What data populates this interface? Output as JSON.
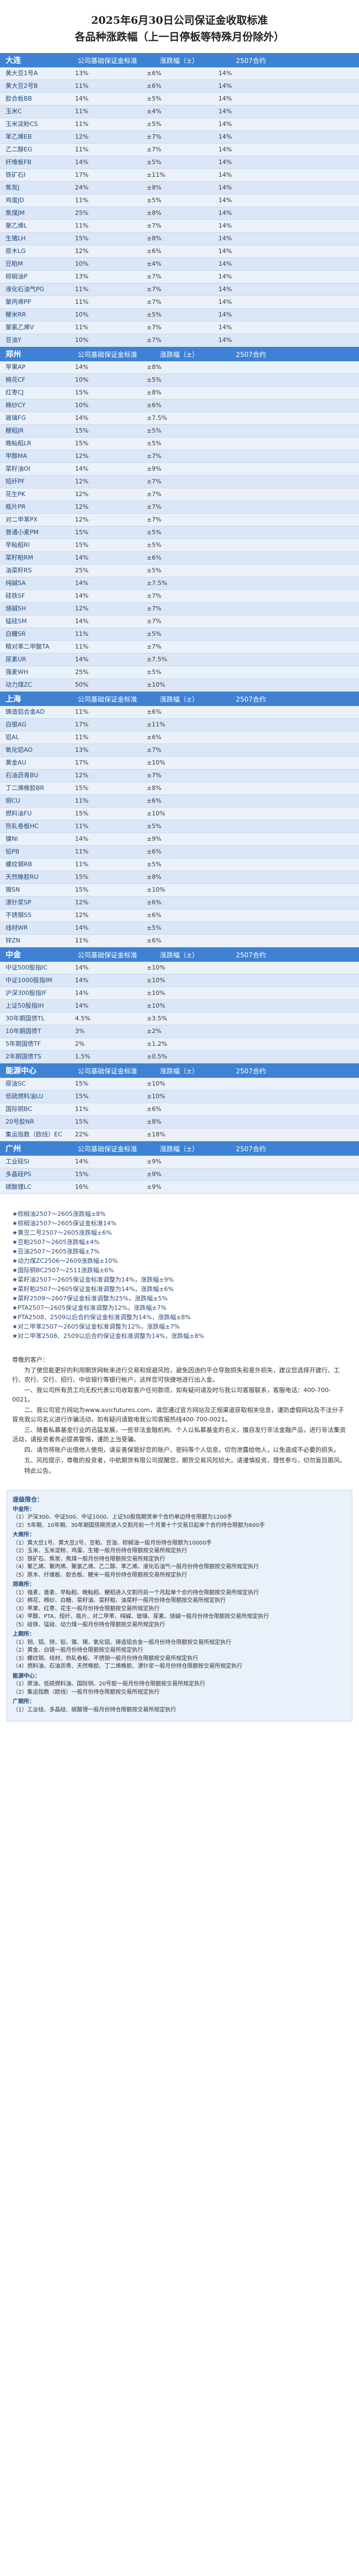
{
  "title": {
    "line1": "2025年6月30日公司保证金收取标准",
    "line2": "各品种涨跌幅（上一日停板等特殊月份除外）"
  },
  "columns": [
    "公司基础保证金标准",
    "涨跌幅（±）",
    "2507合约"
  ],
  "sections": [
    {
      "name": "大连",
      "rows": [
        [
          "黄大豆1号A",
          "13%",
          "±6%",
          "14%",
          ""
        ],
        [
          "黄大豆2号B",
          "11%",
          "±6%",
          "14%",
          ""
        ],
        [
          "胶合板BB",
          "14%",
          "±5%",
          "14%",
          ""
        ],
        [
          "玉米C",
          "11%",
          "±4%",
          "14%",
          ""
        ],
        [
          "玉米淀粉CS",
          "11%",
          "±5%",
          "14%",
          ""
        ],
        [
          "苯乙烯EB",
          "12%",
          "±7%",
          "14%",
          ""
        ],
        [
          "乙二醇EG",
          "11%",
          "±7%",
          "14%",
          ""
        ],
        [
          "纤维板FB",
          "14%",
          "±5%",
          "14%",
          ""
        ],
        [
          "铁矿石I",
          "17%",
          "±11%",
          "14%",
          ""
        ],
        [
          "焦炭J",
          "24%",
          "±8%",
          "14%",
          ""
        ],
        [
          "鸡蛋JD",
          "11%",
          "±5%",
          "14%",
          ""
        ],
        [
          "焦煤JM",
          "25%",
          "±8%",
          "14%",
          ""
        ],
        [
          "聚乙烯L",
          "11%",
          "±7%",
          "14%",
          ""
        ],
        [
          "生猪LH",
          "15%",
          "±8%",
          "14%",
          ""
        ],
        [
          "原木LG",
          "12%",
          "±6%",
          "14%",
          ""
        ],
        [
          "豆粕M",
          "10%",
          "±4%",
          "14%",
          ""
        ],
        [
          "棕榈油P",
          "13%",
          "±7%",
          "14%",
          ""
        ],
        [
          "液化石油气PG",
          "11%",
          "±7%",
          "14%",
          ""
        ],
        [
          "聚丙烯PP",
          "11%",
          "±7%",
          "14%",
          ""
        ],
        [
          "粳米RR",
          "10%",
          "±5%",
          "14%",
          ""
        ],
        [
          "聚氯乙烯V",
          "11%",
          "±7%",
          "14%",
          ""
        ],
        [
          "豆油Y",
          "10%",
          "±7%",
          "14%",
          ""
        ]
      ]
    },
    {
      "name": "郑州",
      "rows": [
        [
          "苹果AP",
          "14%",
          "±8%",
          "",
          ""
        ],
        [
          "棉花CF",
          "10%",
          "±5%",
          "",
          ""
        ],
        [
          "红枣CJ",
          "15%",
          "±8%",
          "",
          ""
        ],
        [
          "棉纱CY",
          "10%",
          "±6%",
          "",
          ""
        ],
        [
          "玻璃FG",
          "14%",
          "±7.5%",
          "",
          ""
        ],
        [
          "粳稻JR",
          "15%",
          "±5%",
          "",
          ""
        ],
        [
          "晚籼稻LR",
          "15%",
          "±5%",
          "",
          ""
        ],
        [
          "甲醇MA",
          "12%",
          "±7%",
          "",
          ""
        ],
        [
          "菜籽油OI",
          "14%",
          "±9%",
          "",
          ""
        ],
        [
          "短纤PF",
          "12%",
          "±7%",
          "",
          ""
        ],
        [
          "花生PK",
          "12%",
          "±7%",
          "",
          ""
        ],
        [
          "瓶片PR",
          "12%",
          "±7%",
          "",
          ""
        ],
        [
          "对二甲苯PX",
          "12%",
          "±7%",
          "",
          ""
        ],
        [
          "普通小麦PM",
          "15%",
          "±5%",
          "",
          ""
        ],
        [
          "早籼稻RI",
          "15%",
          "±5%",
          "",
          ""
        ],
        [
          "菜籽粕RM",
          "14%",
          "±6%",
          "",
          ""
        ],
        [
          "油菜籽RS",
          "25%",
          "±5%",
          "",
          ""
        ],
        [
          "纯碱SA",
          "14%",
          "±7.5%",
          "",
          ""
        ],
        [
          "硅铁SF",
          "14%",
          "±7%",
          "",
          ""
        ],
        [
          "烧碱SH",
          "12%",
          "±7%",
          "",
          ""
        ],
        [
          "锰硅SM",
          "14%",
          "±7%",
          "",
          ""
        ],
        [
          "白糖SR",
          "11%",
          "±5%",
          "",
          ""
        ],
        [
          "精对苯二甲酸TA",
          "11%",
          "±7%",
          "",
          ""
        ],
        [
          "尿素UR",
          "14%",
          "±7.5%",
          "",
          ""
        ],
        [
          "强麦WH",
          "25%",
          "±5%",
          "",
          ""
        ],
        [
          "动力煤ZC",
          "50%",
          "±10%",
          "",
          ""
        ]
      ]
    },
    {
      "name": "上海",
      "rows": [
        [
          "铸造铝合金AD",
          "11%",
          "±6%",
          "",
          ""
        ],
        [
          "白银AG",
          "17%",
          "±11%",
          "",
          ""
        ],
        [
          "铝AL",
          "11%",
          "±6%",
          "",
          ""
        ],
        [
          "氧化铝AO",
          "13%",
          "±7%",
          "",
          ""
        ],
        [
          "黄金AU",
          "17%",
          "±10%",
          "",
          ""
        ],
        [
          "石油沥青BU",
          "12%",
          "±7%",
          "",
          ""
        ],
        [
          "丁二烯橡胶BR",
          "15%",
          "±8%",
          "",
          ""
        ],
        [
          "铜CU",
          "11%",
          "±6%",
          "",
          ""
        ],
        [
          "燃料油FU",
          "15%",
          "±10%",
          "",
          ""
        ],
        [
          "热轧卷板HC",
          "11%",
          "±5%",
          "",
          ""
        ],
        [
          "镍NI",
          "14%",
          "±9%",
          "",
          ""
        ],
        [
          "铅PB",
          "11%",
          "±6%",
          "",
          ""
        ],
        [
          "螺纹钢RB",
          "11%",
          "±5%",
          "",
          ""
        ],
        [
          "天然橡胶RU",
          "15%",
          "±8%",
          "",
          ""
        ],
        [
          "锡SN",
          "15%",
          "±10%",
          "",
          ""
        ],
        [
          "漂针浆SP",
          "12%",
          "±6%",
          "",
          ""
        ],
        [
          "不锈钢SS",
          "12%",
          "±6%",
          "",
          ""
        ],
        [
          "线材WR",
          "14%",
          "±5%",
          "",
          ""
        ],
        [
          "锌ZN",
          "11%",
          "±6%",
          "",
          ""
        ]
      ]
    },
    {
      "name": "中金",
      "rows": [
        [
          "中证500股指IC",
          "14%",
          "±10%",
          "",
          ""
        ],
        [
          "中证1000股指IM",
          "14%",
          "±10%",
          "",
          ""
        ],
        [
          "沪深300股指IF",
          "14%",
          "±10%",
          "",
          ""
        ],
        [
          "上证50股指IH",
          "14%",
          "±10%",
          "",
          ""
        ],
        [
          "30年期国债TL",
          "4.5%",
          "±3.5%",
          "",
          ""
        ],
        [
          "10年期国债T",
          "3%",
          "±2%",
          "",
          ""
        ],
        [
          "5年期国债TF",
          "2%",
          "±1.2%",
          "",
          ""
        ],
        [
          "2年期国债TS",
          "1.5%",
          "±0.5%",
          "",
          ""
        ]
      ]
    },
    {
      "name": "能源中心",
      "rows": [
        [
          "原油SC",
          "15%",
          "±10%",
          "",
          ""
        ],
        [
          "低硫燃料油LU",
          "15%",
          "±10%",
          "",
          ""
        ],
        [
          "国际铜BC",
          "11%",
          "±6%",
          "",
          ""
        ],
        [
          "20号胶NR",
          "15%",
          "±8%",
          "",
          ""
        ],
        [
          "集运指数（欧线）EC",
          "22%",
          "±18%",
          "",
          ""
        ]
      ]
    },
    {
      "name": "广州",
      "rows": [
        [
          "工业硅SI",
          "14%",
          "±9%",
          "",
          ""
        ],
        [
          "多晶硅PS",
          "15%",
          "±9%",
          "",
          ""
        ],
        [
          "碳酸锂LC",
          "16%",
          "±9%",
          "",
          ""
        ]
      ]
    }
  ],
  "notes": [
    "★棕榈油2507～2605涨跌幅±8%",
    "★棕榈油2507～2605保证金标准14%",
    "★黄豆二号2507～2605涨跌幅±6%",
    "★豆粕2507～2605涨跌幅±4%",
    "★豆油2507～2605涨跌幅±7%",
    "★动力煤ZC2506～2609涨跌幅±10%",
    "★国际铜BC2507～2511涨跌幅±6%",
    "★菜籽油2507～2605保证金标准调整为14%，涨跌幅±9%",
    "★菜籽粕2507～2605保证金标准调整为14%，涨跌幅±6%",
    "★菜籽2509～2607保证金标准调整为25%，涨跌幅±5%",
    "★PTA2507～2605保证金标准调整为12%，涨跌幅±7%",
    "★PTA2508、2509以后合约保证金标准调整为14%，涨跌幅±8%",
    "★对二甲苯2507～2605保证金标准调整为12%，涨跌幅±7%",
    "★对二甲苯2508、2509以后合约保证金标准调整为14%，涨跌幅±8%"
  ],
  "letter": [
    "尊敬的客户：",
    "为了使您能更好的利用期货网帐来进行交易和规避风险，避免因违约平仓导致损失和意外损失，建议您选择开建行、工行、农行、交行、招行、中信银行等银行帐户，这样您可快捷地进行出入金。",
    "一、我公司所有员工均无权代表公司收取客户任何款项，如有疑问请及时与我公司客服联系，客服电话：400-700-0021。",
    "二、我公司官方网站为www.avicfutures.com，请您通过官方网站及正规渠道获取相关信息，谨防虚假网站及不法分子冒充我公司名义进行诈骗活动，如有疑问请致电我公司客服热线400-700-0021。",
    "三、随着私募基金行业的迅猛发展，一些非法金融机构、个人以私募基金的名义，擅自发行非法金融产品，进行非法集资活动，请投资者务必提高警惕，谨防上当受骗。",
    "四、请勿将账户出借他人使用，请妥善保管好您的账户、密码等个人信息，切勿泄露给他人，以免造成不必要的损失。",
    "五、风险提示，尊敬的投资者，中航期货有限公司提醒您，期货交易风险较大，请谨慎投资，理性参与，切勿盲目跟风。",
    "特此公告。"
  ],
  "rules": {
    "heading": "逐级限仓：",
    "groups": [
      {
        "name": "中金所：",
        "items": [
          "（1）沪深300、中证500、中证1000、上证50股指期货单个合约单边持仓限额为1200手",
          "（2）5年期、10年期、30年期国债期货进入交割月前一个月第十个交易日起单个合约持仓限额为600手"
        ]
      },
      {
        "name": "大商所：",
        "items": [
          "（1）黄大豆1号、黄大豆2号、豆粕、豆油、棕榈油一般月份持仓限额为10000手",
          "（2）玉米、玉米淀粉、鸡蛋、生猪一般月份持仓限额按交易所规定执行",
          "（3）铁矿石、焦炭、焦煤一般月份持仓限额按交易所规定执行",
          "（4）聚乙烯、聚丙烯、聚氯乙烯、乙二醇、苯乙烯、液化石油气一般月份持仓限额按交易所规定执行",
          "（5）原木、纤维板、胶合板、粳米一般月份持仓限额按交易所规定执行"
        ]
      },
      {
        "name": "郑商所：",
        "items": [
          "（1）强麦、普麦、早籼稻、晚籼稻、粳稻进入交割月前一个月起单个合约持仓限额按交易所规定执行",
          "（2）棉花、棉纱、白糖、菜籽油、菜籽粕、油菜籽一般月份持仓限额按交易所规定执行",
          "（3）苹果、红枣、花生一般月份持仓限额按交易所规定执行",
          "（4）甲醇、PTA、短纤、瓶片、对二甲苯、纯碱、玻璃、尿素、烧碱一般月份持仓限额按交易所规定执行",
          "（5）硅铁、锰硅、动力煤一般月份持仓限额按交易所规定执行"
        ]
      },
      {
        "name": "上期所：",
        "items": [
          "（1）铜、铝、锌、铅、镍、锡、氧化铝、铸造铝合金一般月份持仓限额按交易所规定执行",
          "（2）黄金、白银一般月份持仓限额按交易所规定执行",
          "（3）螺纹钢、线材、热轧卷板、不锈钢一般月份持仓限额按交易所规定执行",
          "（4）燃料油、石油沥青、天然橡胶、丁二烯橡胶、漂针浆一般月份持仓限额按交易所规定执行"
        ]
      },
      {
        "name": "能源中心：",
        "items": [
          "（1）原油、低硫燃料油、国际铜、20号胶一般月份持仓限额按交易所规定执行",
          "（2）集运指数（欧线）一般月份持仓限额按交易所规定执行"
        ]
      },
      {
        "name": "广期所：",
        "items": [
          "（1）工业硅、多晶硅、碳酸锂一般月份持仓限额按交易所规定执行"
        ]
      }
    ]
  }
}
